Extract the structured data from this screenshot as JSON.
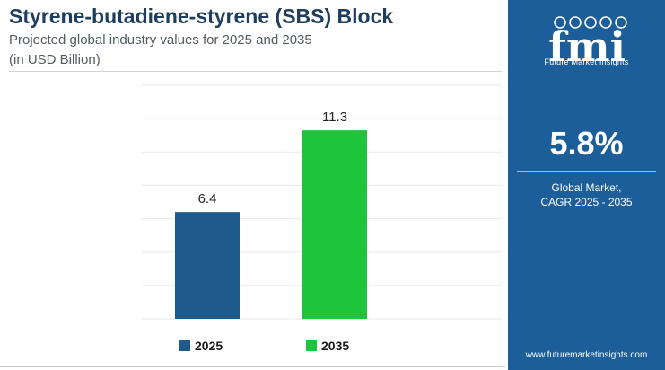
{
  "header": {
    "title": "Styrene-butadiene-styrene (SBS) Block",
    "subtitle": "Projected global industry values for 2025 and 2035",
    "unit": "(in USD Billion)"
  },
  "chart_data": {
    "type": "bar",
    "categories": [
      "2025",
      "2035"
    ],
    "values": [
      6.4,
      11.3
    ],
    "data_labels": [
      "6.4",
      "11.3"
    ],
    "colors": [
      "#1f5a8c",
      "#1ec43a"
    ],
    "ylim": [
      0,
      14
    ],
    "grid": true,
    "legend": "bottom",
    "xlabel": "",
    "ylabel": ""
  },
  "legend": [
    {
      "label": "2025",
      "color": "#1f5a8c"
    },
    {
      "label": "2035",
      "color": "#1ec43a"
    }
  ],
  "panel": {
    "logo_text": "fmi",
    "tagline": "Future Market Insights",
    "cagr_value": "5.8%",
    "cagr_line1": "Global Market,",
    "cagr_line2": "CAGR 2025 - 2035",
    "website": "www.futuremarketinsights.com",
    "background": "#1b5e99"
  }
}
